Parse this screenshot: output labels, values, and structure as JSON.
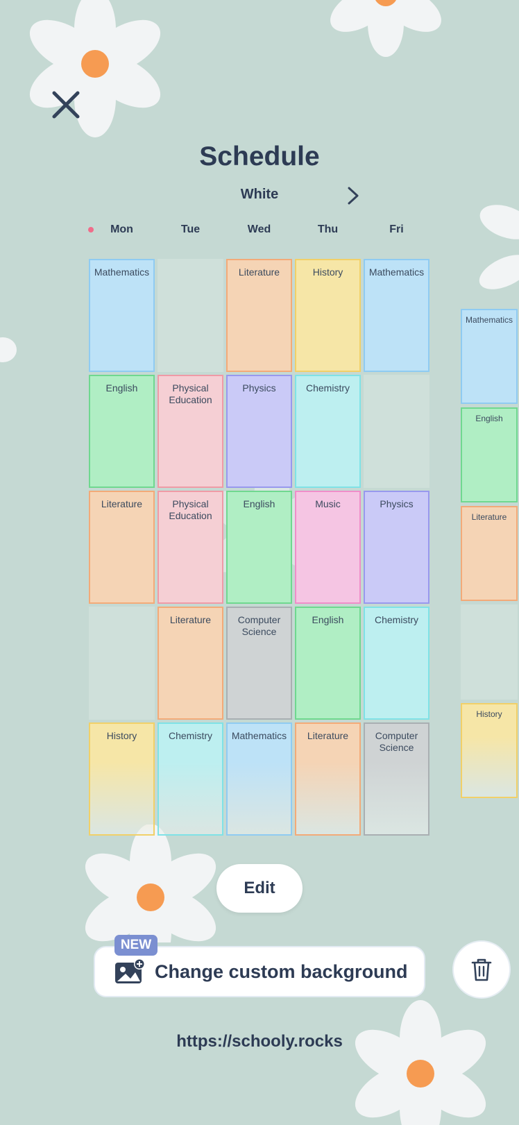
{
  "header": {
    "title": "Schedule",
    "week_name": "White"
  },
  "days": [
    "Mon",
    "Tue",
    "Wed",
    "Thu",
    "Fri"
  ],
  "subject_colors": {
    "Mathematics": {
      "fill": "#bde2f7",
      "border": "#8fcbf2"
    },
    "English": {
      "fill": "#b0eec4",
      "border": "#6fd88f"
    },
    "Literature": {
      "fill": "#f5d4b5",
      "border": "#f3aa78"
    },
    "History": {
      "fill": "#f6e6a7",
      "border": "#f1d068"
    },
    "Physical Education": {
      "fill": "#f5cfd4",
      "border": "#f09aa6"
    },
    "Physics": {
      "fill": "#cacaf7",
      "border": "#9898ee"
    },
    "Chemistry": {
      "fill": "#bdeff0",
      "border": "#7fe2e6"
    },
    "Music": {
      "fill": "#f5c5e3",
      "border": "#f08dc9"
    },
    "Computer Science": {
      "fill": "#cfd3d4",
      "border": "#a9afb2"
    }
  },
  "grid": [
    [
      "Mathematics",
      "",
      "Literature",
      "History",
      "Mathematics"
    ],
    [
      "English",
      "Physical Education",
      "Physics",
      "Chemistry",
      ""
    ],
    [
      "Literature",
      "Physical Education",
      "English",
      "Music",
      "Physics"
    ],
    [
      "",
      "Literature",
      "Computer Science",
      "English",
      "Chemistry"
    ],
    [
      "History",
      "Chemistry",
      "Mathematics",
      "Literature",
      "Computer Science"
    ]
  ],
  "next_day_column": [
    "Mathematics",
    "English",
    "Literature",
    "",
    "History"
  ],
  "actions": {
    "edit_label": "Edit",
    "new_badge": "NEW",
    "change_background_label": "Change custom background"
  },
  "footer": {
    "url": "https://schooly.rocks"
  },
  "icons": {
    "close": "close-icon",
    "next": "chevron-right-icon",
    "image": "image-plus-icon",
    "trash": "trash-icon"
  }
}
